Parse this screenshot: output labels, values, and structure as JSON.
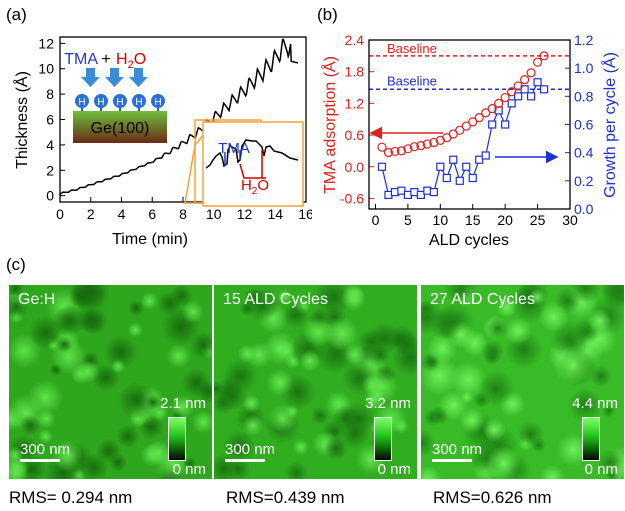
{
  "panel_letters": {
    "a": "(a)",
    "b": "(b)",
    "c": "(c)"
  },
  "panel_a": {
    "inset_top": {
      "tma": "TMA",
      "plus": "+",
      "h2o_main": "H",
      "h2o_sub": "2",
      "h2o_tail": "O",
      "h_atom": "H",
      "substrate": "Ge(100)"
    },
    "inset_zoom": {
      "tma": "TMA",
      "h2o_main": "H",
      "h2o_sub": "2",
      "h2o_tail": "O"
    },
    "colors": {
      "tma": "#1f3bd0",
      "h2o": "#d40000",
      "arrow": "#3a8cd6",
      "substrate_top": "#6fbf3c",
      "substrate_bottom": "#6a2a15",
      "zoom_box": "#f2a33a"
    }
  },
  "panel_b": {
    "baseline_tma_label": "Baseline",
    "baseline_gpc_label": "Baseline",
    "colors": {
      "tma": "#e02020",
      "gpc": "#1f2fd0"
    }
  },
  "chart_data": [
    {
      "type": "line",
      "xlabel": "Time (min)",
      "ylabel": "Thickness (Å)",
      "xlim": [
        0,
        16
      ],
      "ylim": [
        -0.5,
        12.5
      ],
      "xticks": [
        "0",
        "2",
        "4",
        "6",
        "8",
        "10",
        "12",
        "14",
        "16"
      ],
      "yticks": [
        "0",
        "2",
        "4",
        "6",
        "8",
        "10",
        "12"
      ],
      "x": [
        0,
        1,
        2,
        3,
        4,
        5,
        6,
        7,
        8,
        8.5,
        9,
        9.5,
        10,
        10.5,
        11,
        11.5,
        12,
        12.5,
        13,
        13.5,
        14,
        14.4,
        14.8,
        15
      ],
      "y": [
        0.1,
        0.4,
        0.8,
        1.2,
        1.6,
        2.1,
        2.6,
        3.2,
        3.9,
        4.3,
        4.7,
        5.2,
        5.7,
        6.2,
        6.7,
        7.2,
        7.7,
        8.3,
        8.8,
        9.4,
        10.0,
        10.7,
        11.0,
        10.6
      ],
      "grid": false
    },
    {
      "type": "scatter",
      "xlabel": "ALD cycles",
      "xlim": [
        -1,
        30
      ],
      "xticks": [
        "0",
        "5",
        "10",
        "15",
        "20",
        "25",
        "30"
      ],
      "axes": {
        "left": {
          "label": "TMA adsorption (Å)",
          "ylim": [
            -0.8,
            2.4
          ],
          "ticks": [
            "-0.6",
            "0.0",
            "0.6",
            "1.2",
            "1.8",
            "2.4"
          ],
          "color": "#e02020"
        },
        "right": {
          "label": "Growth per cycle (Å)",
          "ylim": [
            0.0,
            1.2
          ],
          "ticks": [
            "0.0",
            "0.2",
            "0.4",
            "0.6",
            "0.8",
            "1.0",
            "1.2"
          ],
          "color": "#1f2fd0"
        }
      },
      "series": [
        {
          "axis": "left",
          "marker": "circle-open",
          "x": [
            1,
            2,
            3,
            4,
            5,
            6,
            7,
            8,
            9,
            10,
            11,
            12,
            13,
            14,
            15,
            16,
            17,
            18,
            19,
            20,
            21,
            22,
            23,
            24,
            25,
            26
          ],
          "y": [
            0.37,
            0.27,
            0.29,
            0.3,
            0.34,
            0.38,
            0.4,
            0.43,
            0.46,
            0.5,
            0.55,
            0.62,
            0.69,
            0.77,
            0.85,
            0.93,
            1.02,
            1.1,
            1.2,
            1.31,
            1.42,
            1.53,
            1.65,
            1.78,
            1.98,
            2.1
          ]
        },
        {
          "axis": "right",
          "marker": "square-open",
          "x": [
            1,
            2,
            3,
            4,
            5,
            6,
            7,
            8,
            9,
            10,
            11,
            12,
            13,
            14,
            15,
            16,
            17,
            18,
            19,
            20,
            21,
            22,
            23,
            24,
            25,
            26
          ],
          "y": [
            0.3,
            0.1,
            0.12,
            0.13,
            0.1,
            0.12,
            0.1,
            0.13,
            0.12,
            0.3,
            0.22,
            0.35,
            0.2,
            0.3,
            0.22,
            0.35,
            0.38,
            0.6,
            0.7,
            0.6,
            0.75,
            0.8,
            0.85,
            0.8,
            0.9,
            0.85
          ]
        }
      ],
      "baselines": [
        {
          "axis": "left",
          "y": 2.1,
          "label": "Baseline"
        },
        {
          "axis": "right",
          "y": 0.85,
          "label": "Baseline"
        }
      ],
      "grid": false
    }
  ],
  "afm_images": [
    {
      "label": "Ge:H",
      "scale_bar": "300 nm",
      "cb_max": "2.1 nm",
      "cb_min": "0 nm",
      "rms": "RMS= 0.294 nm",
      "base": "#2ea61d",
      "light": "#5fe34a",
      "dark": "#176b0d"
    },
    {
      "label": "15 ALD Cycles",
      "scale_bar": "300 nm",
      "cb_max": "3.2 nm",
      "cb_min": "0 nm",
      "rms": "RMS=0.439 nm",
      "base": "#31ad20",
      "light": "#62e64f",
      "dark": "#1a7410"
    },
    {
      "label": "27 ALD Cycles",
      "scale_bar": "300 nm",
      "cb_max": "4.4 nm",
      "cb_min": "0 nm",
      "rms": "RMS=0.626 nm",
      "base": "#38bb27",
      "light": "#6cf058",
      "dark": "#1f8014"
    }
  ]
}
